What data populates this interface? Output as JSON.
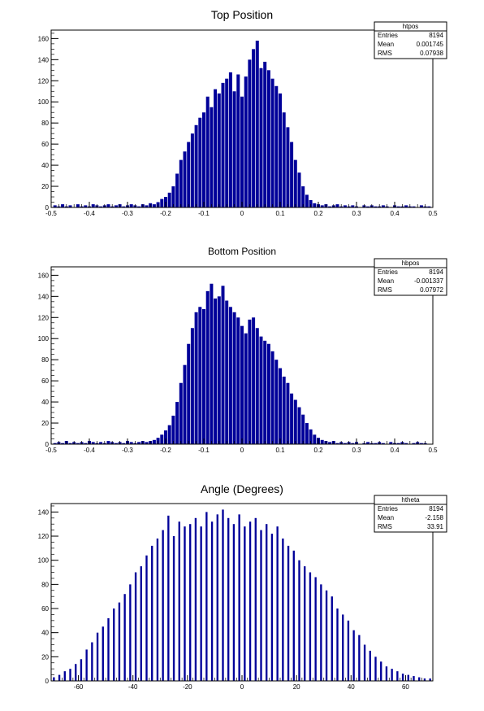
{
  "colors": {
    "bar": "#000099",
    "axis": "#000000",
    "background": "#ffffff"
  },
  "chart_data": [
    {
      "type": "bar",
      "title": "Top Position",
      "xlabel": "",
      "ylabel": "",
      "xlim": [
        -0.5,
        0.5
      ],
      "ylim": [
        0,
        168
      ],
      "xticks": [
        "-0.5",
        "-0.4",
        "-0.3",
        "-0.2",
        "-0.1",
        "0",
        "0.1",
        "0.2",
        "0.3",
        "0.4",
        "0.5"
      ],
      "xtick_values": [
        -0.5,
        -0.4,
        -0.3,
        -0.2,
        -0.1,
        0,
        0.1,
        0.2,
        0.3,
        0.4,
        0.5
      ],
      "yticks": [
        "0",
        "20",
        "40",
        "60",
        "80",
        "100",
        "120",
        "140",
        "160"
      ],
      "ytick_values": [
        0,
        20,
        40,
        60,
        80,
        100,
        120,
        140,
        160
      ],
      "stats": {
        "name": "htpos",
        "rows": [
          {
            "label": "Entries",
            "value": "8194"
          },
          {
            "label": "Mean",
            "value": "0.001745"
          },
          {
            "label": "RMS",
            "value": "0.07938"
          }
        ]
      },
      "bins": {
        "x": [
          -0.49,
          -0.48,
          -0.47,
          -0.46,
          -0.45,
          -0.44,
          -0.43,
          -0.42,
          -0.41,
          -0.4,
          -0.39,
          -0.38,
          -0.37,
          -0.36,
          -0.35,
          -0.34,
          -0.33,
          -0.32,
          -0.31,
          -0.3,
          -0.29,
          -0.28,
          -0.27,
          -0.26,
          -0.25,
          -0.24,
          -0.23,
          -0.22,
          -0.21,
          -0.2,
          -0.19,
          -0.18,
          -0.17,
          -0.16,
          -0.15,
          -0.14,
          -0.13,
          -0.12,
          -0.11,
          -0.1,
          -0.09,
          -0.08,
          -0.07,
          -0.06,
          -0.05,
          -0.04,
          -0.03,
          -0.02,
          -0.01,
          0.0,
          0.01,
          0.02,
          0.03,
          0.04,
          0.05,
          0.06,
          0.07,
          0.08,
          0.09,
          0.1,
          0.11,
          0.12,
          0.13,
          0.14,
          0.15,
          0.16,
          0.17,
          0.18,
          0.19,
          0.2,
          0.21,
          0.22,
          0.23,
          0.24,
          0.25,
          0.26,
          0.27,
          0.28,
          0.29,
          0.3,
          0.31,
          0.32,
          0.33,
          0.34,
          0.35,
          0.36,
          0.37,
          0.38,
          0.39,
          0.4,
          0.41,
          0.42,
          0.43,
          0.44,
          0.45,
          0.46,
          0.47,
          0.48,
          0.49
        ],
        "values": [
          2,
          1,
          3,
          1,
          2,
          0,
          3,
          1,
          2,
          1,
          3,
          2,
          1,
          2,
          3,
          1,
          2,
          3,
          1,
          2,
          3,
          2,
          1,
          3,
          2,
          4,
          3,
          5,
          8,
          10,
          14,
          20,
          32,
          45,
          53,
          62,
          70,
          78,
          85,
          90,
          105,
          95,
          112,
          108,
          118,
          122,
          128,
          110,
          126,
          105,
          124,
          140,
          150,
          158,
          132,
          138,
          130,
          122,
          115,
          108,
          90,
          76,
          62,
          45,
          33,
          20,
          12,
          7,
          4,
          3,
          2,
          3,
          1,
          2,
          3,
          1,
          2,
          1,
          2,
          1,
          0,
          2,
          1,
          2,
          1,
          1,
          2,
          1,
          0,
          2,
          1,
          1,
          2,
          1,
          1,
          0,
          2,
          1,
          1
        ]
      }
    },
    {
      "type": "bar",
      "title": "Bottom Position",
      "xlabel": "",
      "ylabel": "",
      "xlim": [
        -0.5,
        0.5
      ],
      "ylim": [
        0,
        168
      ],
      "xticks": [
        "-0.5",
        "-0.4",
        "-0.3",
        "-0.2",
        "-0.1",
        "0",
        "0.1",
        "0.2",
        "0.3",
        "0.4",
        "0.5"
      ],
      "xtick_values": [
        -0.5,
        -0.4,
        -0.3,
        -0.2,
        -0.1,
        0,
        0.1,
        0.2,
        0.3,
        0.4,
        0.5
      ],
      "yticks": [
        "0",
        "20",
        "40",
        "60",
        "80",
        "100",
        "120",
        "140",
        "160"
      ],
      "ytick_values": [
        0,
        20,
        40,
        60,
        80,
        100,
        120,
        140,
        160
      ],
      "stats": {
        "name": "hbpos",
        "rows": [
          {
            "label": "Entries",
            "value": "8194"
          },
          {
            "label": "Mean",
            "value": "-0.001337"
          },
          {
            "label": "RMS",
            "value": "0.07972"
          }
        ]
      },
      "bins": {
        "x": [
          -0.49,
          -0.48,
          -0.47,
          -0.46,
          -0.45,
          -0.44,
          -0.43,
          -0.42,
          -0.41,
          -0.4,
          -0.39,
          -0.38,
          -0.37,
          -0.36,
          -0.35,
          -0.34,
          -0.33,
          -0.32,
          -0.31,
          -0.3,
          -0.29,
          -0.28,
          -0.27,
          -0.26,
          -0.25,
          -0.24,
          -0.23,
          -0.22,
          -0.21,
          -0.2,
          -0.19,
          -0.18,
          -0.17,
          -0.16,
          -0.15,
          -0.14,
          -0.13,
          -0.12,
          -0.11,
          -0.1,
          -0.09,
          -0.08,
          -0.07,
          -0.06,
          -0.05,
          -0.04,
          -0.03,
          -0.02,
          -0.01,
          0.0,
          0.01,
          0.02,
          0.03,
          0.04,
          0.05,
          0.06,
          0.07,
          0.08,
          0.09,
          0.1,
          0.11,
          0.12,
          0.13,
          0.14,
          0.15,
          0.16,
          0.17,
          0.18,
          0.19,
          0.2,
          0.21,
          0.22,
          0.23,
          0.24,
          0.25,
          0.26,
          0.27,
          0.28,
          0.29,
          0.3,
          0.31,
          0.32,
          0.33,
          0.34,
          0.35,
          0.36,
          0.37,
          0.38,
          0.39,
          0.4,
          0.41,
          0.42,
          0.43,
          0.44,
          0.45,
          0.46,
          0.47,
          0.48,
          0.49
        ],
        "values": [
          1,
          2,
          1,
          3,
          1,
          2,
          1,
          2,
          1,
          3,
          2,
          1,
          2,
          1,
          3,
          2,
          1,
          2,
          1,
          3,
          2,
          1,
          2,
          3,
          2,
          3,
          4,
          6,
          9,
          13,
          18,
          27,
          40,
          58,
          75,
          95,
          110,
          125,
          130,
          128,
          145,
          152,
          138,
          140,
          150,
          136,
          130,
          125,
          120,
          112,
          105,
          118,
          120,
          110,
          102,
          98,
          95,
          88,
          80,
          72,
          64,
          58,
          48,
          42,
          35,
          28,
          20,
          14,
          9,
          6,
          4,
          3,
          2,
          3,
          1,
          2,
          1,
          2,
          1,
          2,
          0,
          1,
          2,
          1,
          1,
          2,
          1,
          0,
          2,
          1,
          1,
          2,
          1,
          0,
          1,
          2,
          1,
          1,
          0
        ]
      }
    },
    {
      "type": "bar",
      "title": "Angle (Degrees)",
      "xlabel": "",
      "ylabel": "",
      "xlim": [
        -70,
        70
      ],
      "ylim": [
        0,
        147
      ],
      "xticks": [
        "-60",
        "-40",
        "-20",
        "0",
        "20",
        "40",
        "60"
      ],
      "xtick_values": [
        -60,
        -40,
        -20,
        0,
        20,
        40,
        60
      ],
      "yticks": [
        "0",
        "20",
        "40",
        "60",
        "80",
        "100",
        "120",
        "140"
      ],
      "ytick_values": [
        0,
        20,
        40,
        60,
        80,
        100,
        120,
        140
      ],
      "stats": {
        "name": "htheta",
        "rows": [
          {
            "label": "Entries",
            "value": "8194"
          },
          {
            "label": "Mean",
            "value": "-2.158"
          },
          {
            "label": "RMS",
            "value": "33.91"
          }
        ]
      },
      "bins": {
        "x": [
          -69,
          -67,
          -65,
          -63,
          -61,
          -59,
          -57,
          -55,
          -53,
          -51,
          -49,
          -47,
          -45,
          -43,
          -41,
          -39,
          -37,
          -35,
          -33,
          -31,
          -29,
          -27,
          -25,
          -23,
          -21,
          -19,
          -17,
          -15,
          -13,
          -11,
          -9,
          -7,
          -5,
          -3,
          -1,
          1,
          3,
          5,
          7,
          9,
          11,
          13,
          15,
          17,
          19,
          21,
          23,
          25,
          27,
          29,
          31,
          33,
          35,
          37,
          39,
          41,
          43,
          45,
          47,
          49,
          51,
          53,
          55,
          57,
          59,
          61,
          63,
          65,
          67,
          69
        ],
        "values": [
          3,
          5,
          8,
          10,
          14,
          18,
          26,
          32,
          40,
          45,
          52,
          60,
          65,
          72,
          80,
          90,
          95,
          104,
          112,
          118,
          125,
          137,
          120,
          132,
          128,
          130,
          135,
          128,
          140,
          132,
          138,
          142,
          135,
          130,
          138,
          128,
          132,
          135,
          125,
          130,
          122,
          128,
          118,
          112,
          108,
          100,
          95,
          90,
          86,
          80,
          75,
          70,
          60,
          55,
          50,
          42,
          38,
          30,
          25,
          20,
          16,
          12,
          10,
          8,
          6,
          5,
          4,
          3,
          2,
          2
        ]
      }
    }
  ]
}
